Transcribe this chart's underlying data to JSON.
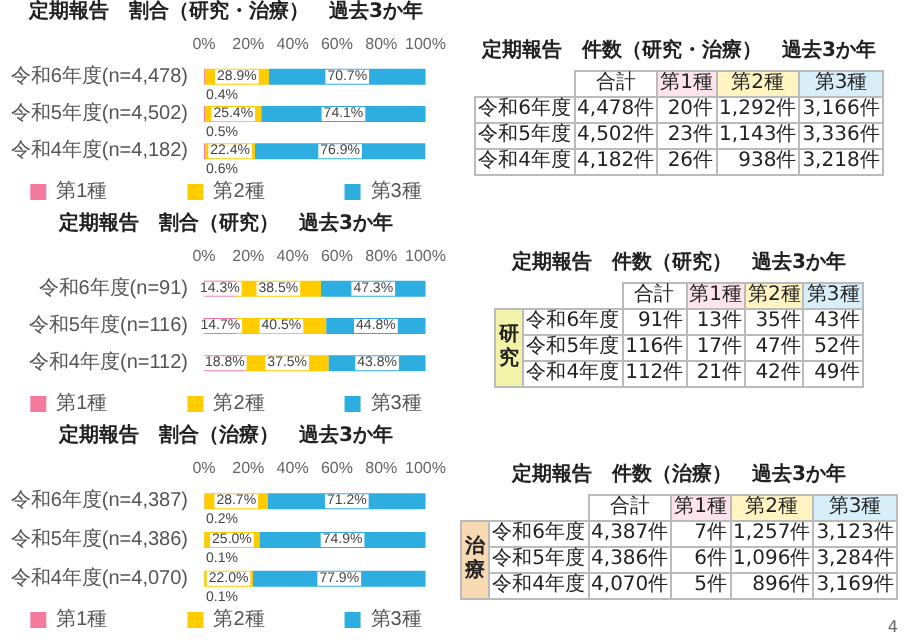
{
  "chart_data": [
    {
      "type": "bar",
      "orientation": "horizontal",
      "stacked": true,
      "title": "定期報告　割合（研究・治療）　過去3か年",
      "categories": [
        "令和6年度(n=4,478)",
        "令和5年度(n=4,502)",
        "令和4年度(n=4,182)"
      ],
      "xlim": [
        0,
        100
      ],
      "xticks": [
        {
          "value": 0,
          "label": "0%"
        },
        {
          "value": 20,
          "label": "20%"
        },
        {
          "value": 40,
          "label": "40%"
        },
        {
          "value": 60,
          "label": "60%"
        },
        {
          "value": 80,
          "label": "80%"
        },
        {
          "value": 100,
          "label": "100%"
        }
      ],
      "grid": false,
      "legend": "bottom",
      "series": [
        {
          "name": "第1種",
          "color": "#f37a9d",
          "values": [
            0.4,
            0.5,
            0.6
          ],
          "value_labels": [
            "0.4%",
            "0.5%",
            "0.6%"
          ]
        },
        {
          "name": "第2種",
          "color": "#ffcc00",
          "values": [
            28.9,
            25.4,
            22.4
          ],
          "value_labels": [
            "28.9%",
            "25.4%",
            "22.4%"
          ]
        },
        {
          "name": "第3種",
          "color": "#2eaee0",
          "values": [
            70.7,
            74.1,
            76.9
          ],
          "value_labels": [
            "70.7%",
            "74.1%",
            "76.9%"
          ]
        }
      ]
    },
    {
      "type": "other",
      "title": "定期報告　件数（研究・治療）　過去3か年",
      "categories": [
        "合計",
        "第1種",
        "第2種",
        "第3種"
      ],
      "y_categories": [
        "令和6年度",
        "令和5年度",
        "令和4年度"
      ],
      "cell_labels": [
        [
          "4,478件",
          "20件",
          "1,292件",
          "3,166件"
        ],
        [
          "4,502件",
          "23件",
          "1,143件",
          "3,336件"
        ],
        [
          "4,182件",
          "26件",
          "938件",
          "3,218件"
        ]
      ]
    },
    {
      "type": "bar",
      "orientation": "horizontal",
      "stacked": true,
      "title": "定期報告　割合（研究）　過去3か年",
      "categories": [
        "令和6年度(n=91)",
        "令和5年度(n=116)",
        "令和4年度(n=112)"
      ],
      "xlim": [
        0,
        100
      ],
      "xticks": [
        {
          "value": 0,
          "label": "0%"
        },
        {
          "value": 20,
          "label": "20%"
        },
        {
          "value": 40,
          "label": "40%"
        },
        {
          "value": 60,
          "label": "60%"
        },
        {
          "value": 80,
          "label": "80%"
        },
        {
          "value": 100,
          "label": "100%"
        }
      ],
      "grid": false,
      "legend": "bottom",
      "series": [
        {
          "name": "第1種",
          "color": "#f37a9d",
          "values": [
            14.3,
            14.7,
            18.8
          ],
          "value_labels": [
            "14.3%",
            "14.7%",
            "18.8%"
          ]
        },
        {
          "name": "第2種",
          "color": "#ffcc00",
          "values": [
            38.5,
            40.5,
            37.5
          ],
          "value_labels": [
            "38.5%",
            "40.5%",
            "37.5%"
          ]
        },
        {
          "name": "第3種",
          "color": "#2eaee0",
          "values": [
            47.3,
            44.8,
            43.8
          ],
          "value_labels": [
            "47.3%",
            "44.8%",
            "43.8%"
          ]
        }
      ]
    },
    {
      "type": "other",
      "title": "定期報告　件数（研究）　過去3か年",
      "annotations": [
        "研究"
      ],
      "categories": [
        "合計",
        "第1種",
        "第2種",
        "第3種"
      ],
      "y_categories": [
        "令和6年度",
        "令和5年度",
        "令和4年度"
      ],
      "cell_labels": [
        [
          "91件",
          "13件",
          "35件",
          "43件"
        ],
        [
          "116件",
          "17件",
          "47件",
          "52件"
        ],
        [
          "112件",
          "21件",
          "42件",
          "49件"
        ]
      ]
    },
    {
      "type": "bar",
      "orientation": "horizontal",
      "stacked": true,
      "title": "定期報告　割合（治療）　過去3か年",
      "categories": [
        "令和6年度(n=4,387)",
        "令和5年度(n=4,386)",
        "令和4年度(n=4,070)"
      ],
      "xlim": [
        0,
        100
      ],
      "xticks": [
        {
          "value": 0,
          "label": "0%"
        },
        {
          "value": 20,
          "label": "20%"
        },
        {
          "value": 40,
          "label": "40%"
        },
        {
          "value": 60,
          "label": "60%"
        },
        {
          "value": 80,
          "label": "80%"
        },
        {
          "value": 100,
          "label": "100%"
        }
      ],
      "grid": false,
      "legend": "bottom",
      "series": [
        {
          "name": "第1種",
          "color": "#f37a9d",
          "values": [
            0.2,
            0.1,
            0.1
          ],
          "value_labels": [
            "0.2%",
            "0.1%",
            "0.1%"
          ]
        },
        {
          "name": "第2種",
          "color": "#ffcc00",
          "values": [
            28.7,
            25.0,
            22.0
          ],
          "value_labels": [
            "28.7%",
            "25.0%",
            "22.0%"
          ]
        },
        {
          "name": "第3種",
          "color": "#2eaee0",
          "values": [
            71.2,
            74.9,
            77.9
          ],
          "value_labels": [
            "71.2%",
            "74.9%",
            "77.9%"
          ]
        }
      ]
    },
    {
      "type": "other",
      "title": "定期報告　件数（治療）　過去3か年",
      "annotations": [
        "治療",
        "4"
      ],
      "categories": [
        "合計",
        "第1種",
        "第2種",
        "第3種"
      ],
      "y_categories": [
        "令和6年度",
        "令和5年度",
        "令和4年度"
      ],
      "cell_labels": [
        [
          "4,387件",
          "7件",
          "1,257件",
          "3,123件"
        ],
        [
          "4,386件",
          "6件",
          "1,096件",
          "3,284件"
        ],
        [
          "4,070件",
          "5件",
          "896件",
          "3,169件"
        ]
      ]
    }
  ]
}
